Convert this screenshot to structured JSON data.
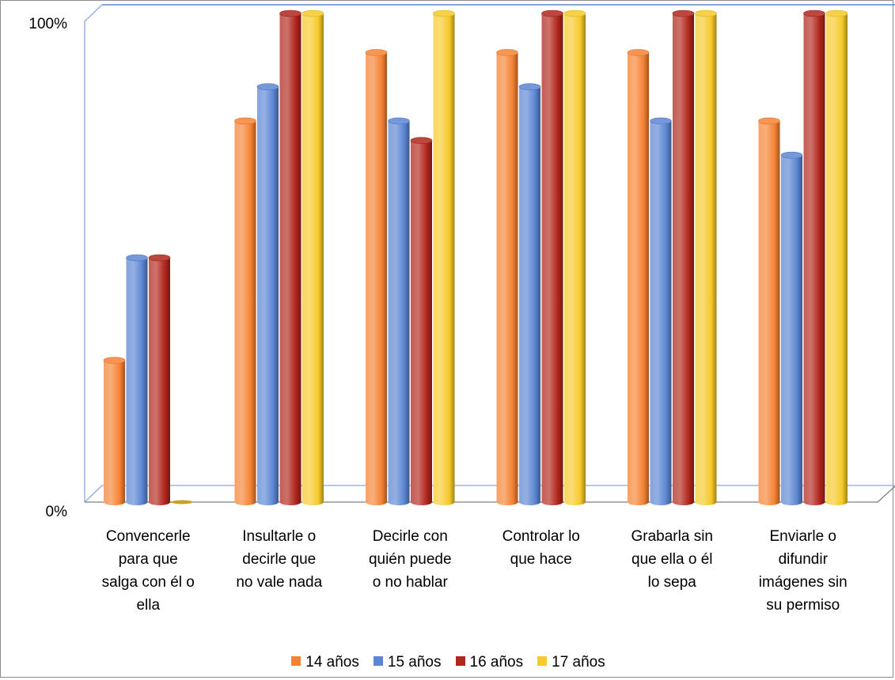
{
  "chart_data": {
    "type": "bar",
    "ylim": [
      0,
      100
    ],
    "yticks": [
      "0%",
      "100%"
    ],
    "categories": [
      [
        "Convencerle",
        "para que",
        "salga con él o",
        "ella"
      ],
      [
        "Insultarle o",
        "decirle que",
        "no vale nada"
      ],
      [
        "Decirle con",
        "quién puede",
        "o no hablar"
      ],
      [
        "Controlar lo",
        "que hace"
      ],
      [
        "Grabarla sin",
        "que ella o él",
        "lo sepa"
      ],
      [
        "Enviarle o",
        "difundir",
        "imágenes sin",
        "su permiso"
      ]
    ],
    "series": [
      {
        "name": "14 años",
        "color": "#f58233",
        "values": [
          29,
          78,
          92,
          92,
          92,
          78
        ]
      },
      {
        "name": "15 años",
        "color": "#5b86d3",
        "values": [
          50,
          85,
          78,
          85,
          78,
          71
        ]
      },
      {
        "name": "16 años",
        "color": "#b1261c",
        "values": [
          50,
          100,
          74,
          100,
          100,
          100
        ]
      },
      {
        "name": "17 años",
        "color": "#f7c92a",
        "values": [
          0,
          100,
          100,
          100,
          100,
          100
        ]
      }
    ],
    "grid": false,
    "legend_position": "bottom"
  }
}
